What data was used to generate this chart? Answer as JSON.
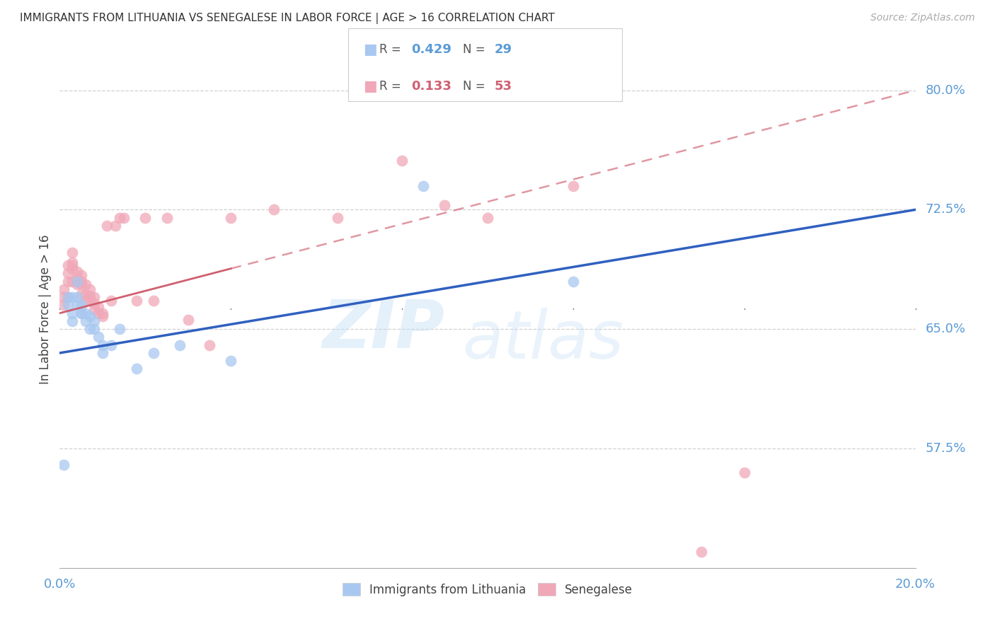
{
  "title": "IMMIGRANTS FROM LITHUANIA VS SENEGALESE IN LABOR FORCE | AGE > 16 CORRELATION CHART",
  "source_text": "Source: ZipAtlas.com",
  "ylabel": "In Labor Force | Age > 16",
  "xlim": [
    0.0,
    0.2
  ],
  "ylim": [
    0.5,
    0.825
  ],
  "grid_color": "#d0d0d0",
  "background_color": "#ffffff",
  "blue_color": "#a8c8f0",
  "pink_color": "#f0a8b8",
  "blue_line_color": "#3060c0",
  "pink_line_color": "#d06070",
  "legend_blue_label": "Immigrants from Lithuania",
  "legend_pink_label": "Senegalese",
  "R_blue": 0.429,
  "N_blue": 29,
  "R_pink": 0.133,
  "N_pink": 53,
  "watermark_zip": "ZIP",
  "watermark_atlas": "atlas",
  "ytick_positions": [
    0.575,
    0.65,
    0.725,
    0.8
  ],
  "ytick_labels": [
    "57.5%",
    "65.0%",
    "72.5%",
    "80.0%"
  ],
  "blue_scatter_x": [
    0.001,
    0.002,
    0.002,
    0.003,
    0.003,
    0.003,
    0.004,
    0.004,
    0.004,
    0.005,
    0.005,
    0.005,
    0.006,
    0.006,
    0.007,
    0.007,
    0.008,
    0.008,
    0.009,
    0.01,
    0.01,
    0.012,
    0.014,
    0.018,
    0.022,
    0.028,
    0.04,
    0.085,
    0.12
  ],
  "blue_scatter_y": [
    0.565,
    0.665,
    0.67,
    0.67,
    0.66,
    0.655,
    0.67,
    0.665,
    0.68,
    0.66,
    0.665,
    0.66,
    0.66,
    0.655,
    0.65,
    0.658,
    0.655,
    0.65,
    0.645,
    0.64,
    0.635,
    0.64,
    0.65,
    0.625,
    0.635,
    0.64,
    0.63,
    0.74,
    0.68
  ],
  "pink_scatter_x": [
    0.001,
    0.001,
    0.001,
    0.002,
    0.002,
    0.002,
    0.002,
    0.003,
    0.003,
    0.003,
    0.003,
    0.003,
    0.004,
    0.004,
    0.004,
    0.004,
    0.005,
    0.005,
    0.005,
    0.005,
    0.006,
    0.006,
    0.006,
    0.007,
    0.007,
    0.007,
    0.008,
    0.008,
    0.008,
    0.009,
    0.009,
    0.01,
    0.01,
    0.011,
    0.012,
    0.013,
    0.014,
    0.015,
    0.018,
    0.02,
    0.022,
    0.025,
    0.03,
    0.035,
    0.04,
    0.05,
    0.065,
    0.08,
    0.09,
    0.1,
    0.12,
    0.15,
    0.16
  ],
  "pink_scatter_y": [
    0.665,
    0.67,
    0.675,
    0.67,
    0.68,
    0.685,
    0.69,
    0.68,
    0.688,
    0.69,
    0.692,
    0.698,
    0.682,
    0.678,
    0.68,
    0.686,
    0.678,
    0.68,
    0.684,
    0.672,
    0.678,
    0.672,
    0.668,
    0.668,
    0.671,
    0.675,
    0.662,
    0.666,
    0.67,
    0.66,
    0.664,
    0.66,
    0.658,
    0.715,
    0.668,
    0.715,
    0.72,
    0.72,
    0.668,
    0.72,
    0.668,
    0.72,
    0.656,
    0.64,
    0.72,
    0.725,
    0.72,
    0.756,
    0.728,
    0.72,
    0.74,
    0.51,
    0.56
  ]
}
